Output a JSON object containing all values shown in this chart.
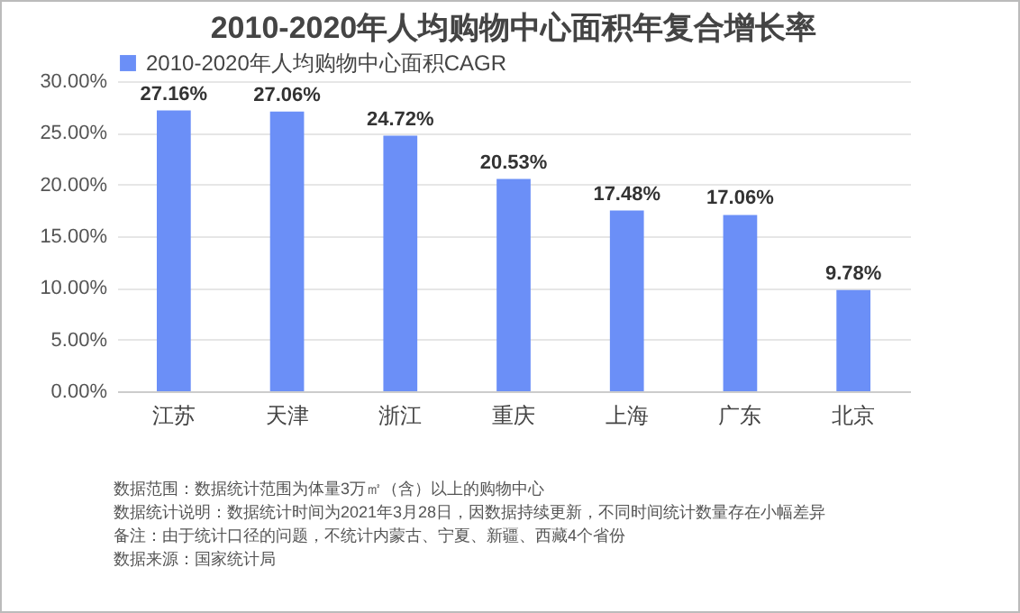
{
  "chart_data": {
    "type": "bar",
    "title": "2010-2020年人均购物中心面积年复合增长率",
    "categories": [
      "江苏",
      "天津",
      "浙江",
      "重庆",
      "上海",
      "广东",
      "北京"
    ],
    "series": [
      {
        "name": "2010-2020年人均购物中心面积CAGR",
        "color": "#6b8ff7",
        "values": [
          27.16,
          27.06,
          24.72,
          20.53,
          17.48,
          17.06,
          9.78
        ],
        "value_labels": [
          "27.16%",
          "27.06%",
          "24.72%",
          "20.53%",
          "17.48%",
          "17.06%",
          "9.78%"
        ]
      }
    ],
    "ylim": [
      0,
      30
    ],
    "yticks": [
      {
        "value": 0,
        "label": "0.00%"
      },
      {
        "value": 5,
        "label": "5.00%"
      },
      {
        "value": 10,
        "label": "10.00%"
      },
      {
        "value": 15,
        "label": "15.00%"
      },
      {
        "value": 20,
        "label": "20.00%"
      },
      {
        "value": 25,
        "label": "25.00%"
      },
      {
        "value": 30,
        "label": "30.00%"
      }
    ],
    "grid": "y",
    "legend": "top",
    "annotations": [
      "数据范围：数据统计范围为体量3万㎡（含）以上的购物中心",
      "数据统计说明：数据统计时间为2021年3月28日，因数据持续更新，不同时间统计数量存在小幅差异",
      "备注：由于统计口径的问题，不统计内蒙古、宁夏、新疆、西藏4个省份",
      "数据来源：国家统计局"
    ]
  }
}
